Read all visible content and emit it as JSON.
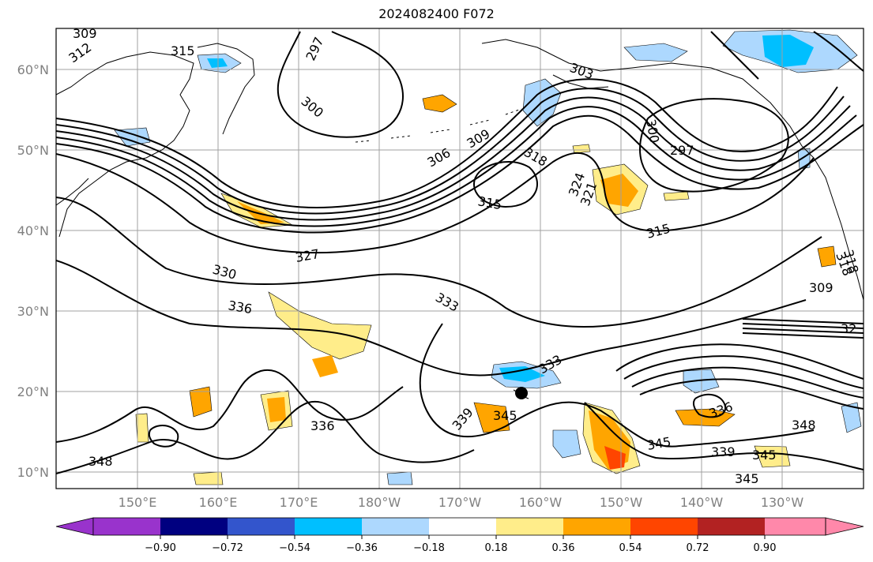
{
  "title": "2024082400 F072",
  "map": {
    "lat_labels": [
      "60°N",
      "50°N",
      "40°N",
      "30°N",
      "20°N",
      "10°N"
    ],
    "lon_labels": [
      "150°E",
      "160°E",
      "170°E",
      "180°W",
      "170°W",
      "160°W",
      "150°W",
      "140°W",
      "130°W"
    ],
    "contour_labels": [
      "309",
      "312",
      "315",
      "297",
      "300",
      "303",
      "306",
      "309",
      "318",
      "315",
      "324",
      "321",
      "300",
      "297",
      "315",
      "327",
      "330",
      "336",
      "333",
      "318",
      "309",
      "333",
      "345",
      "339",
      "336",
      "348",
      "339",
      "345",
      "336",
      "348",
      "345",
      "345",
      "318",
      "32"
    ]
  },
  "colorbar": {
    "tick_labels": [
      "−0.90",
      "−0.72",
      "−0.54",
      "−0.36",
      "−0.18",
      "0.18",
      "0.36",
      "0.54",
      "0.72",
      "0.90"
    ],
    "colors": [
      "#9933cc",
      "#000080",
      "#3355cc",
      "#00bfff",
      "#add8fe",
      "#ffffff",
      "#ffed8a",
      "#ffa500",
      "#ff4500",
      "#b22222",
      "#ff88aa"
    ]
  }
}
